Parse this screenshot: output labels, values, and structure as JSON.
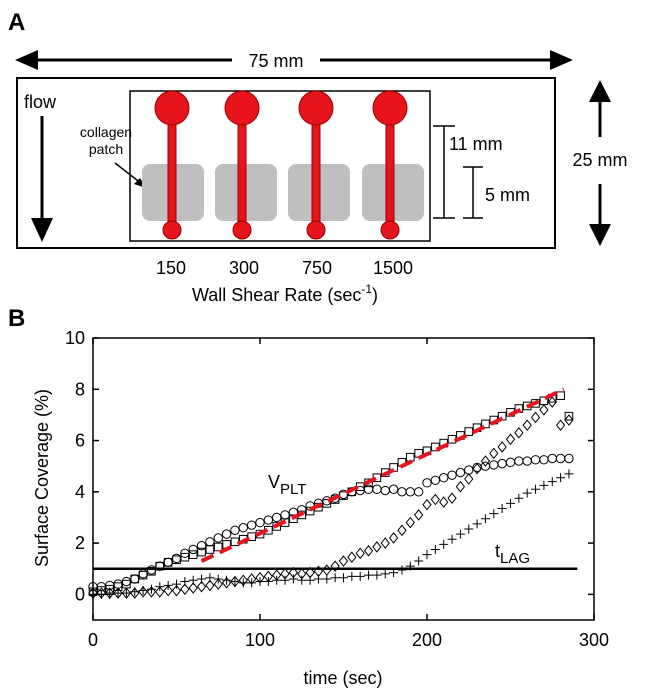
{
  "panel_a": {
    "letter": "A",
    "width_label": "75 mm",
    "height_label": "25 mm",
    "flow_label": "flow",
    "patch_label_line1": "collagen",
    "patch_label_line2": "patch",
    "channel_length_label": "11 mm",
    "patch_length_label": "5 mm",
    "shear_rates": [
      "150",
      "300",
      "750",
      "1500"
    ],
    "shear_axis_label": "Wall Shear Rate (sec",
    "shear_axis_exp": "-1",
    "shear_axis_close": ")",
    "colors": {
      "channel": "#e8141b",
      "patch": "#bfbfbf"
    }
  },
  "panel_b": {
    "letter": "B",
    "vplt_main": "V",
    "vplt_sub": "PLT",
    "tlag_main": "t",
    "tlag_sub": "LAG"
  },
  "chart_data": {
    "type": "scatter",
    "xlabel": "time (sec)",
    "ylabel": "Surface Coverage (%)",
    "xlim": [
      0,
      300
    ],
    "ylim": [
      -1,
      10
    ],
    "xticks": [
      0,
      100,
      200,
      300
    ],
    "yticks": [
      0,
      2,
      4,
      6,
      8,
      10
    ],
    "grid": false,
    "series": [
      {
        "marker": "circle",
        "x": [
          0,
          5,
          10,
          15,
          20,
          25,
          30,
          35,
          40,
          45,
          50,
          55,
          60,
          65,
          70,
          75,
          80,
          85,
          90,
          95,
          100,
          105,
          110,
          115,
          120,
          125,
          130,
          135,
          140,
          145,
          150,
          155,
          160,
          165,
          170,
          175,
          180,
          185,
          190,
          195,
          200,
          205,
          210,
          215,
          220,
          225,
          230,
          235,
          240,
          245,
          250,
          255,
          260,
          265,
          270,
          275,
          280,
          285
        ],
        "y": [
          0.3,
          0.3,
          0.35,
          0.4,
          0.5,
          0.6,
          0.8,
          0.95,
          1.1,
          1.25,
          1.4,
          1.6,
          1.75,
          1.9,
          2.05,
          2.2,
          2.35,
          2.5,
          2.6,
          2.7,
          2.8,
          2.9,
          3.0,
          3.1,
          3.2,
          3.3,
          3.45,
          3.55,
          3.65,
          3.75,
          3.9,
          4.0,
          4.05,
          4.1,
          4.1,
          4.05,
          4.1,
          4.0,
          4.0,
          4.0,
          4.35,
          4.45,
          4.55,
          4.65,
          4.75,
          4.85,
          4.95,
          5.0,
          5.05,
          5.1,
          5.15,
          5.2,
          5.2,
          5.25,
          5.25,
          5.3,
          5.3,
          5.3
        ]
      },
      {
        "marker": "square",
        "x": [
          0,
          5,
          10,
          15,
          20,
          25,
          30,
          35,
          40,
          45,
          50,
          55,
          60,
          65,
          70,
          75,
          80,
          85,
          90,
          95,
          100,
          105,
          110,
          115,
          120,
          125,
          130,
          135,
          140,
          145,
          150,
          155,
          160,
          165,
          170,
          175,
          180,
          185,
          190,
          195,
          200,
          205,
          210,
          215,
          220,
          225,
          230,
          235,
          240,
          245,
          250,
          255,
          260,
          265,
          270,
          275,
          280,
          285
        ],
        "y": [
          0.1,
          0.15,
          0.2,
          0.3,
          0.4,
          0.6,
          0.75,
          0.9,
          1.1,
          1.25,
          1.35,
          1.45,
          1.55,
          1.65,
          1.75,
          1.85,
          1.95,
          2.05,
          2.15,
          2.25,
          2.35,
          2.5,
          2.65,
          2.8,
          2.95,
          3.1,
          3.25,
          3.4,
          3.55,
          3.7,
          3.85,
          4.0,
          4.2,
          4.35,
          4.55,
          4.75,
          4.95,
          5.15,
          5.35,
          5.5,
          5.6,
          5.75,
          5.9,
          6.05,
          6.2,
          6.35,
          6.5,
          6.65,
          6.8,
          6.95,
          7.1,
          7.25,
          7.35,
          7.45,
          7.55,
          7.65,
          7.75,
          6.95
        ]
      },
      {
        "marker": "diamond",
        "x": [
          0,
          5,
          10,
          15,
          20,
          25,
          30,
          35,
          40,
          45,
          50,
          55,
          60,
          65,
          70,
          75,
          80,
          85,
          90,
          95,
          100,
          105,
          110,
          115,
          120,
          125,
          130,
          135,
          140,
          145,
          150,
          155,
          160,
          165,
          170,
          175,
          180,
          185,
          190,
          195,
          200,
          205,
          210,
          215,
          220,
          225,
          230,
          235,
          240,
          245,
          250,
          255,
          260,
          265,
          270,
          275,
          280,
          285
        ],
        "y": [
          0.05,
          0.05,
          0.05,
          0.05,
          0.05,
          0.05,
          0.1,
          0.1,
          0.1,
          0.15,
          0.15,
          0.2,
          0.25,
          0.3,
          0.35,
          0.4,
          0.45,
          0.5,
          0.55,
          0.6,
          0.65,
          0.7,
          0.75,
          0.8,
          0.85,
          0.8,
          0.85,
          0.9,
          0.95,
          1.1,
          1.3,
          1.45,
          1.6,
          1.7,
          1.85,
          2.0,
          2.2,
          2.5,
          2.8,
          3.1,
          3.5,
          3.7,
          3.6,
          3.75,
          4.2,
          4.5,
          4.9,
          5.2,
          5.5,
          5.75,
          6.05,
          6.3,
          6.6,
          6.9,
          7.2,
          7.5,
          6.6,
          6.8
        ]
      },
      {
        "marker": "plus",
        "x": [
          0,
          5,
          10,
          15,
          20,
          25,
          30,
          35,
          40,
          45,
          50,
          55,
          60,
          65,
          70,
          75,
          80,
          85,
          90,
          95,
          100,
          105,
          110,
          115,
          120,
          125,
          130,
          135,
          140,
          145,
          150,
          155,
          160,
          165,
          170,
          175,
          180,
          185,
          190,
          195,
          200,
          205,
          210,
          215,
          220,
          225,
          230,
          235,
          240,
          245,
          250,
          255,
          260,
          265,
          270,
          275,
          280,
          285
        ],
        "y": [
          0.0,
          0.0,
          0.0,
          0.05,
          0.05,
          0.1,
          0.15,
          0.2,
          0.3,
          0.35,
          0.4,
          0.5,
          0.55,
          0.6,
          0.65,
          0.6,
          0.55,
          0.5,
          0.45,
          0.45,
          0.5,
          0.5,
          0.55,
          0.55,
          0.6,
          0.55,
          0.55,
          0.6,
          0.6,
          0.65,
          0.65,
          0.7,
          0.7,
          0.75,
          0.75,
          0.8,
          0.85,
          0.95,
          1.1,
          1.3,
          1.55,
          1.75,
          1.95,
          2.15,
          2.35,
          2.55,
          2.75,
          2.95,
          3.15,
          3.35,
          3.55,
          3.75,
          3.95,
          4.1,
          4.25,
          4.4,
          4.55,
          4.7
        ]
      }
    ],
    "fit_line": {
      "x": [
        65,
        282
      ],
      "y": [
        1.3,
        8.0
      ],
      "color": "#e8141b"
    },
    "threshold_line": {
      "y": 1.0,
      "x": [
        0,
        290
      ],
      "color": "#000000"
    }
  }
}
